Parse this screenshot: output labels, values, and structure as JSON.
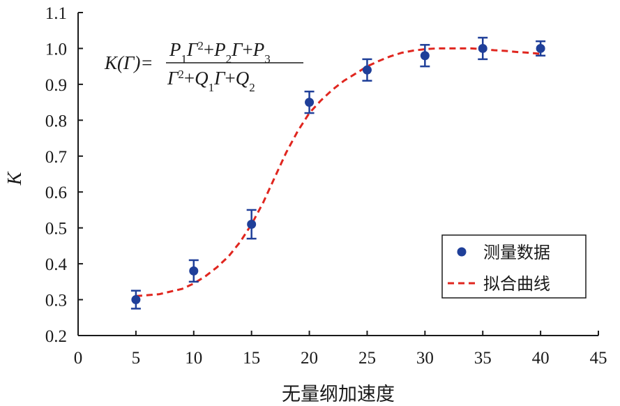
{
  "chart_data": {
    "type": "scatter",
    "xlabel": "无量纲加速度",
    "ylabel": "K",
    "xlim": [
      0,
      45
    ],
    "ylim": [
      0.2,
      1.1
    ],
    "xticks": [
      "0",
      "5",
      "10",
      "15",
      "20",
      "25",
      "30",
      "35",
      "40",
      "45"
    ],
    "yticks": [
      "0.2",
      "0.3",
      "0.4",
      "0.5",
      "0.6",
      "0.7",
      "0.8",
      "0.9",
      "1.0",
      "1.1"
    ],
    "grid": false,
    "legend_position": "bottom-right",
    "formula": {
      "lhs": "K(Γ)=",
      "numerator": "P1Γ2+P2Γ+P3",
      "denominator": "Γ2+Q1Γ+Q2"
    },
    "series": [
      {
        "name": "测量数据",
        "kind": "scatter-errorbar",
        "color": "#1f3f99",
        "x": [
          5,
          10,
          15,
          20,
          25,
          30,
          35,
          40
        ],
        "y": [
          0.3,
          0.38,
          0.51,
          0.85,
          0.94,
          0.98,
          1.0,
          1.0
        ],
        "error": [
          0.025,
          0.03,
          0.04,
          0.03,
          0.03,
          0.03,
          0.03,
          0.02
        ]
      },
      {
        "name": "拟合曲线",
        "kind": "line-dashed",
        "color": "#e0261f",
        "x": [
          5,
          7,
          9,
          10,
          11,
          12,
          13,
          14,
          15,
          16,
          17,
          18,
          19,
          20,
          21,
          22,
          23,
          24,
          25,
          26,
          27,
          28,
          29,
          30,
          31,
          32,
          33,
          34,
          35,
          36,
          37,
          38,
          39,
          40
        ],
        "y": [
          0.31,
          0.315,
          0.33,
          0.345,
          0.365,
          0.39,
          0.42,
          0.46,
          0.51,
          0.57,
          0.64,
          0.71,
          0.77,
          0.82,
          0.855,
          0.885,
          0.91,
          0.93,
          0.95,
          0.965,
          0.978,
          0.988,
          0.994,
          0.998,
          1.0,
          1.0,
          1.0,
          1.0,
          0.998,
          0.995,
          0.993,
          0.99,
          0.988,
          0.985
        ]
      }
    ]
  }
}
